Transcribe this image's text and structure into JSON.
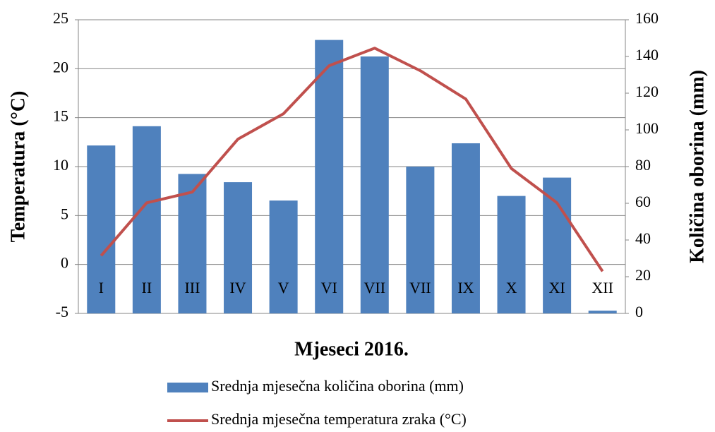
{
  "chart_data": {
    "type": "bar-line",
    "xlabel": "Mjeseci 2016.",
    "ylabel": "Temperatura (°C)",
    "y2label": "Količina oborina (mm)",
    "categories": [
      "I",
      "II",
      "III",
      "IV",
      "V",
      "VI",
      "VII",
      "VII",
      "IX",
      "X",
      "XI",
      "XII"
    ],
    "series": [
      {
        "name": "Srednja mjesečna količina oborina (mm)",
        "type": "bar",
        "axis": "y2",
        "color": "#4f81bd",
        "values": [
          91.5,
          102,
          76,
          71.5,
          61.5,
          149,
          140,
          80,
          92.7,
          64,
          74,
          1.5
        ]
      },
      {
        "name": "Srednja mjesečna temperatura zraka (°C)",
        "type": "line",
        "axis": "y",
        "color": "#c0504d",
        "values": [
          0.9,
          6.3,
          7.4,
          12.8,
          15.4,
          20.3,
          22.1,
          19.8,
          16.9,
          9.8,
          6.3,
          -0.7
        ]
      }
    ],
    "ylim": [
      -5,
      25
    ],
    "yticks": [
      -5,
      0,
      5,
      10,
      15,
      20,
      25
    ],
    "y2lim": [
      0,
      160
    ],
    "y2ticks": [
      0,
      20,
      40,
      60,
      80,
      100,
      120,
      140,
      160
    ],
    "grid": true,
    "legend": "bottom"
  }
}
